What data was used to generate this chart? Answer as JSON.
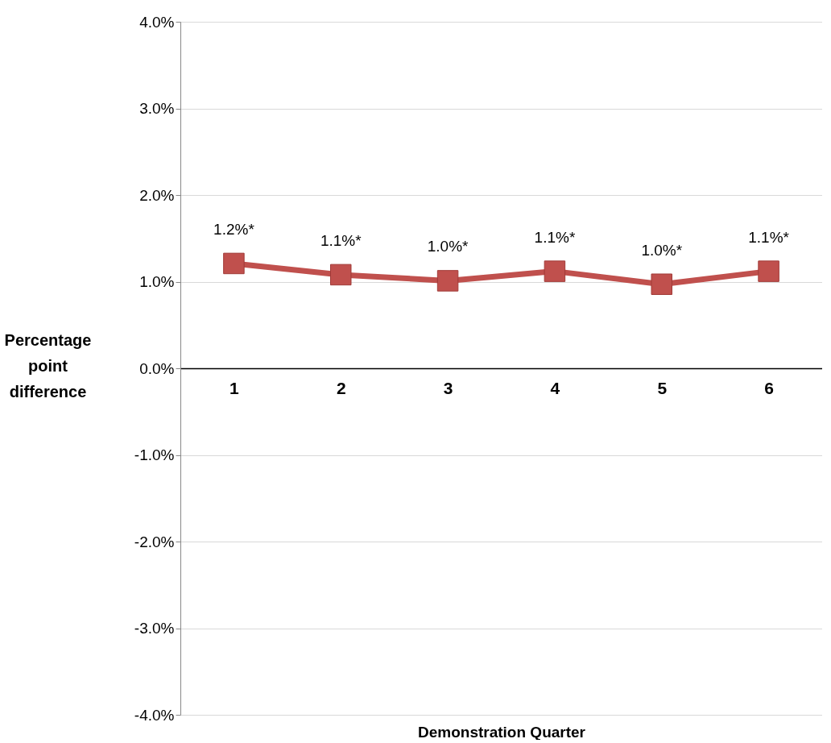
{
  "chart_data": {
    "type": "line",
    "xlabel": "Demonstration Quarter",
    "ylabel": "Percentage point difference",
    "categories": [
      "1",
      "2",
      "3",
      "4",
      "5",
      "6"
    ],
    "series": [
      {
        "color": "#c0504d",
        "values": [
          1.21,
          1.08,
          1.01,
          1.12,
          0.97,
          1.12
        ],
        "value_labels": [
          "1.2%*",
          "1.1%*",
          "1.0%*",
          "1.1%*",
          "1.0%*",
          "1.1%*"
        ]
      }
    ],
    "ylim": [
      -4,
      4
    ],
    "yticks": [
      {
        "value": -4,
        "label": "-4.0%"
      },
      {
        "value": -3,
        "label": "-3.0%"
      },
      {
        "value": -2,
        "label": "-2.0%"
      },
      {
        "value": -1,
        "label": "-1.0%"
      },
      {
        "value": 0,
        "label": "0.0%"
      },
      {
        "value": 1,
        "label": "1.0%"
      },
      {
        "value": 2,
        "label": "2.0%"
      },
      {
        "value": 3,
        "label": "3.0%"
      },
      {
        "value": 4,
        "label": "4.0%"
      }
    ],
    "grid": "y",
    "marker": "square",
    "line_style": "solid"
  }
}
